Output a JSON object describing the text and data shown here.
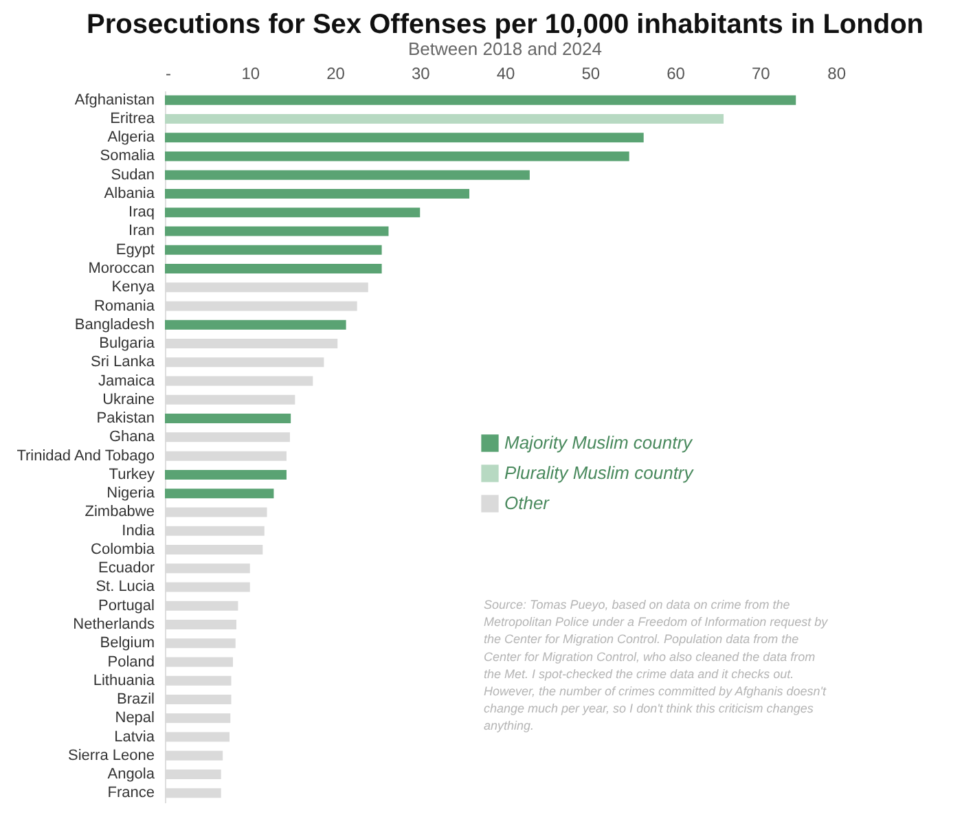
{
  "chart_data": {
    "type": "bar",
    "orientation": "horizontal",
    "title": "Prosecutions for Sex Offenses per 10,000 inhabitants in London",
    "subtitle": "Between 2018 and 2024",
    "categories": [
      "Afghanistan",
      "Eritrea",
      "Algeria",
      "Somalia",
      "Sudan",
      "Albania",
      "Iraq",
      "Iran",
      "Egypt",
      "Moroccan",
      "Kenya",
      "Romania",
      "Bangladesh",
      "Bulgaria",
      "Sri Lanka",
      "Jamaica",
      "Ukraine",
      "Pakistan",
      "Ghana",
      "Trinidad And Tobago",
      "Turkey",
      "Nigeria",
      "Zimbabwe",
      "India",
      "Colombia",
      "Ecuador",
      "St. Lucia",
      "Portugal",
      "Netherlands",
      "Belgium",
      "Poland",
      "Lithuania",
      "Brazil",
      "Nepal",
      "Latvia",
      "Sierra Leone",
      "Angola",
      "France"
    ],
    "series": [
      {
        "name": "Majority Muslim country",
        "color": "#5aa373",
        "values": [
          74.2,
          null,
          56.3,
          54.6,
          42.9,
          35.8,
          30.0,
          26.3,
          25.5,
          25.5,
          null,
          null,
          21.3,
          null,
          null,
          null,
          null,
          14.8,
          null,
          null,
          14.3,
          12.8,
          null,
          null,
          null,
          null,
          null,
          null,
          null,
          null,
          null,
          null,
          null,
          null,
          null,
          null,
          null,
          null
        ]
      },
      {
        "name": "Plurality Muslim country",
        "color": "#b7d9c2",
        "values": [
          null,
          65.7,
          null,
          null,
          null,
          null,
          null,
          null,
          null,
          null,
          null,
          null,
          null,
          null,
          null,
          null,
          null,
          null,
          null,
          null,
          null,
          null,
          null,
          null,
          null,
          null,
          null,
          null,
          null,
          null,
          null,
          null,
          null,
          null,
          null,
          null,
          null,
          null
        ]
      },
      {
        "name": "Other",
        "color": "#dadada",
        "values": [
          null,
          null,
          null,
          null,
          null,
          null,
          null,
          null,
          null,
          null,
          23.9,
          22.6,
          null,
          20.3,
          18.7,
          17.4,
          15.3,
          null,
          14.7,
          14.3,
          null,
          null,
          12.0,
          11.7,
          11.5,
          10.0,
          10.0,
          8.6,
          8.4,
          8.3,
          8.0,
          7.8,
          7.8,
          7.7,
          7.6,
          6.8,
          6.6,
          6.6
        ]
      }
    ],
    "xlim": [
      0,
      80
    ],
    "xticks": [
      {
        "value": 0,
        "label": "-"
      },
      10,
      20,
      30,
      40,
      50,
      60,
      70,
      80
    ],
    "grid": false,
    "legend": "right",
    "annotations": [
      "Source: Tomas Pueyo, based on data on crime from the Metropolitan Police under a Freedom of Information request by the Center for Migration Control. Population data from the Center for Migration Control, who also cleaned the data from the Met. I spot-checked the crime data and it checks out. However, the number of crimes committed by Afghanis doesn't change much per year, so I don't think this criticism changes anything."
    ]
  }
}
